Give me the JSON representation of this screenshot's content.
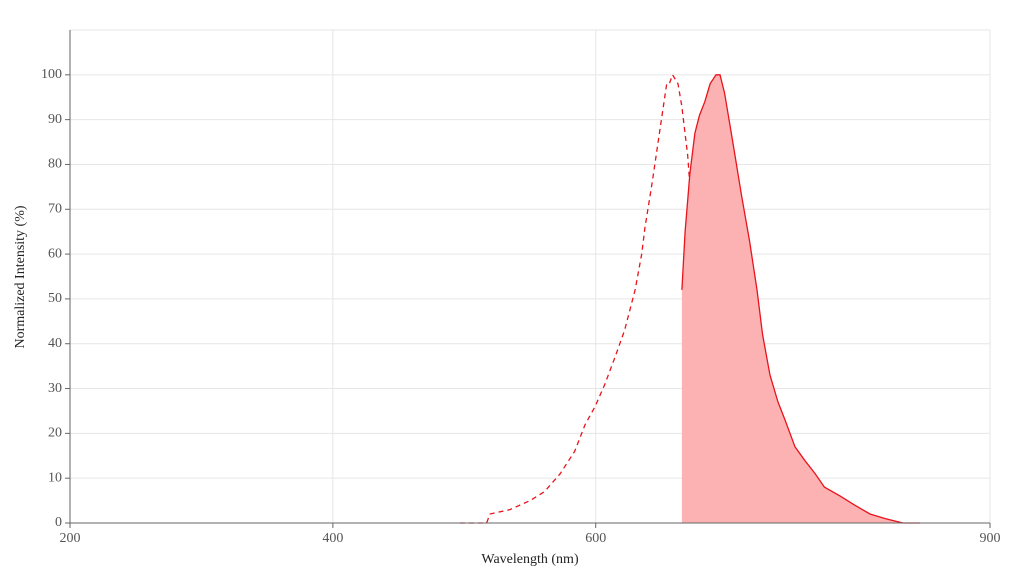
{
  "chart_data": {
    "type": "line",
    "xlabel": "Wavelength (nm)",
    "ylabel": "Normalized Intensity (%)",
    "xlim": [
      200,
      900
    ],
    "xticks": [
      200,
      400,
      600,
      900
    ],
    "ylim": [
      0,
      110
    ],
    "yticks": [
      0,
      10,
      20,
      30,
      40,
      50,
      60,
      70,
      80,
      90,
      100
    ],
    "grid": true,
    "series": [
      {
        "color": "#e8141b",
        "dash": true,
        "x": [
          496.7,
          517,
          519.6,
          534.8,
          550,
          561,
          573,
          584,
          592,
          599.5,
          607,
          614.7,
          622,
          630,
          635,
          637.5,
          643,
          649,
          654,
          656,
          658.5,
          662.6,
          665.5,
          670,
          675.5,
          677.8,
          677.8
        ],
        "values": [
          0,
          0,
          2,
          3,
          5,
          7,
          11,
          16,
          22,
          26,
          31,
          37,
          43,
          52,
          60,
          66,
          76,
          88,
          98,
          98,
          100,
          98,
          93,
          82,
          60,
          55,
          0
        ]
      },
      {
        "color": "#e8141b",
        "dash": false,
        "fill": "#fcb1b2",
        "x": [
          665.6,
          668,
          671.7,
          675.5,
          679,
          683,
          687,
          691.5,
          694.6,
          698,
          702,
          706,
          711,
          717,
          722.7,
          727,
          732.6,
          738.7,
          744,
          751.6,
          759,
          767,
          774,
          786,
          797,
          808.7,
          820,
          833.8,
          846.7
        ],
        "values": [
          52,
          65,
          78,
          87,
          91,
          94,
          98,
          100,
          100,
          96,
          89,
          82,
          73,
          63,
          52,
          42,
          33,
          27,
          23,
          17,
          14,
          11,
          8,
          6,
          4,
          2,
          1,
          0,
          0
        ]
      }
    ]
  }
}
